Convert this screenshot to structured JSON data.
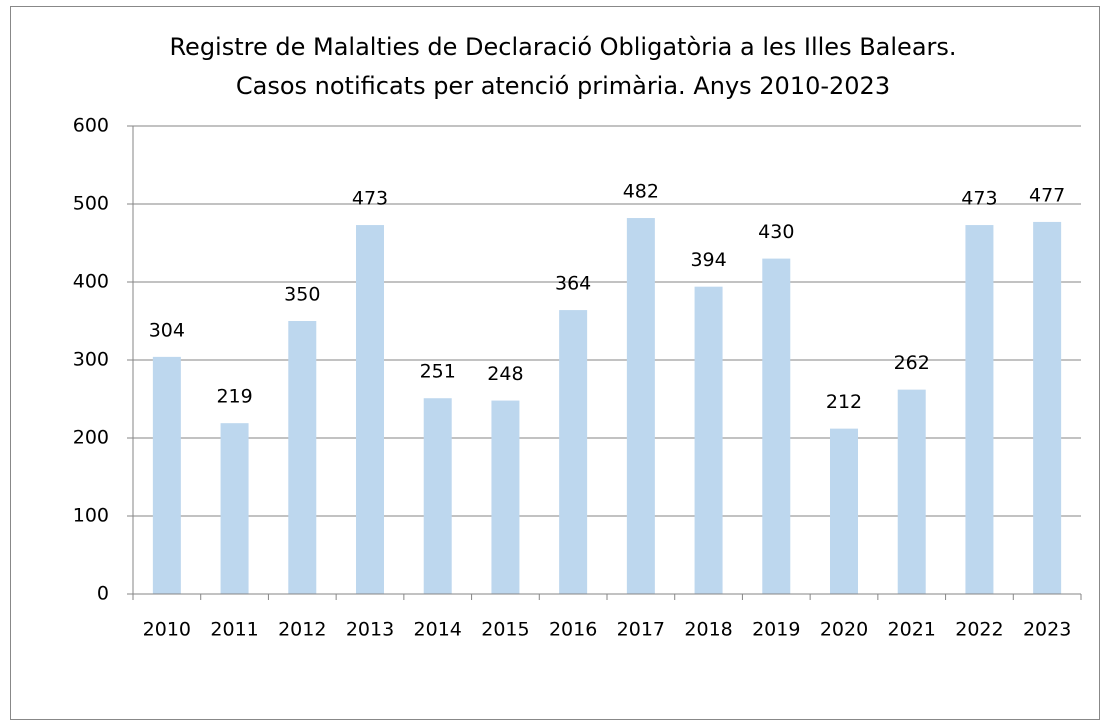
{
  "chart_data": {
    "type": "bar",
    "title": "Registre de Malalties de Declaració Obligatòria a les Illes Balears. Casos notificats per atenció primària. Anys 2010-2023",
    "categories": [
      "2010",
      "2011",
      "2012",
      "2013",
      "2014",
      "2015",
      "2016",
      "2017",
      "2018",
      "2019",
      "2020",
      "2021",
      "2022",
      "2023"
    ],
    "values": [
      304,
      219,
      350,
      473,
      251,
      248,
      364,
      482,
      394,
      430,
      212,
      262,
      473,
      477
    ],
    "color": "#bdd7ee",
    "ylim": [
      0,
      600
    ],
    "yticks": [
      0,
      100,
      200,
      300,
      400,
      500,
      600
    ],
    "grid": true
  }
}
